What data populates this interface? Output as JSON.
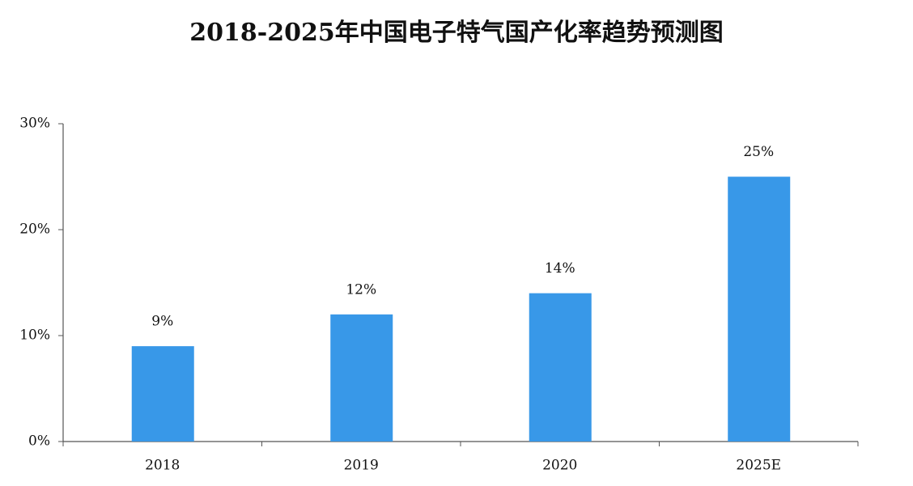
{
  "chart_data": {
    "type": "bar",
    "title": "2018-2025年中国电子特气国产化率趋势预测图",
    "categories": [
      "2018",
      "2019",
      "2020",
      "2025E"
    ],
    "values": [
      9,
      12,
      14,
      25
    ],
    "value_labels": [
      "9%",
      "12%",
      "14%",
      "25%"
    ],
    "color": "#3898e8",
    "ylim": [
      0,
      30
    ],
    "yticks": [
      {
        "value": 0,
        "label": "0%"
      },
      {
        "value": 10,
        "label": "10%"
      },
      {
        "value": 20,
        "label": "20%"
      },
      {
        "value": 30,
        "label": "30%"
      }
    ]
  }
}
